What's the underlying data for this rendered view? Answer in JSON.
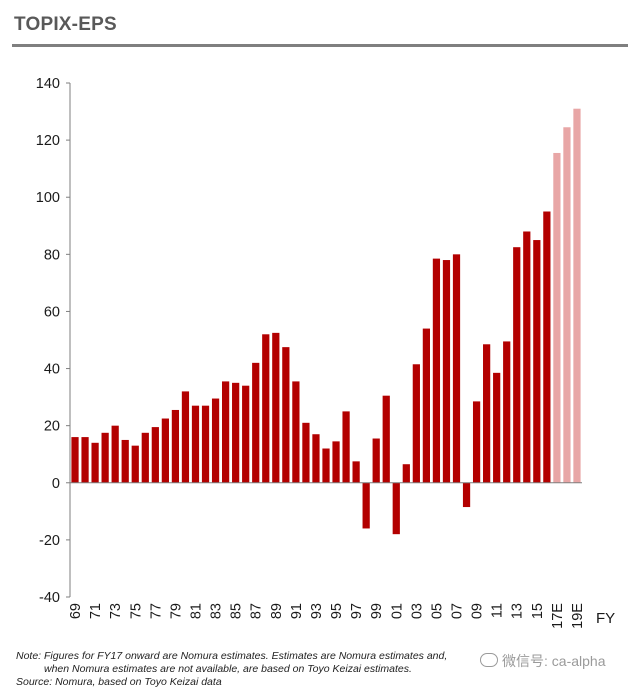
{
  "chart_data": {
    "type": "bar",
    "title": "TOPIX-EPS",
    "xlabel": "FY",
    "ylabel": "",
    "ylim": [
      -40,
      140
    ],
    "yticks": [
      -40,
      -20,
      0,
      20,
      40,
      60,
      80,
      100,
      120,
      140
    ],
    "categories": [
      "69",
      "70",
      "71",
      "72",
      "73",
      "74",
      "75",
      "76",
      "77",
      "78",
      "79",
      "80",
      "81",
      "82",
      "83",
      "84",
      "85",
      "86",
      "87",
      "88",
      "89",
      "90",
      "91",
      "92",
      "93",
      "94",
      "95",
      "96",
      "97",
      "98",
      "99",
      "00",
      "01",
      "02",
      "03",
      "04",
      "05",
      "06",
      "07",
      "08",
      "09",
      "10",
      "11",
      "12",
      "13",
      "14",
      "15",
      "16",
      "17E",
      "18E",
      "19E"
    ],
    "xtick_labels": [
      "69",
      "",
      "71",
      "",
      "73",
      "",
      "75",
      "",
      "77",
      "",
      "79",
      "",
      "81",
      "",
      "83",
      "",
      "85",
      "",
      "87",
      "",
      "89",
      "",
      "91",
      "",
      "93",
      "",
      "95",
      "",
      "97",
      "",
      "99",
      "",
      "01",
      "",
      "03",
      "",
      "05",
      "",
      "07",
      "",
      "09",
      "",
      "11",
      "",
      "13",
      "",
      "15",
      "",
      "17E",
      "",
      "19E"
    ],
    "values": [
      16,
      16,
      14,
      17.5,
      20,
      15,
      13,
      17.5,
      19.5,
      22.5,
      25.5,
      32,
      27,
      27,
      29.5,
      35.5,
      35,
      34,
      42,
      52,
      52.5,
      47.5,
      35.5,
      21,
      17,
      12,
      14.5,
      25,
      7.5,
      -16,
      15.5,
      30.5,
      -18,
      6.5,
      41.5,
      54,
      78.5,
      78,
      80,
      -8.5,
      28.5,
      48.5,
      38.5,
      49.5,
      82.5,
      88,
      85,
      95,
      115.5,
      124.5,
      131
    ],
    "estimate_from_index": 48,
    "colors": {
      "actual": "#b30000",
      "estimate": "#e8a6a6",
      "axis": "#7f7f7f"
    }
  },
  "notes": {
    "line1": "Note: Figures for FY17 onward are Nomura estimates. Estimates are Nomura estimates and,",
    "line2": "when Nomura estimates are not available, are based on Toyo Keizai estimates.",
    "source": "Source: Nomura, based on Toyo Keizai data"
  },
  "watermark": {
    "text": "微信号: ca-alpha"
  }
}
